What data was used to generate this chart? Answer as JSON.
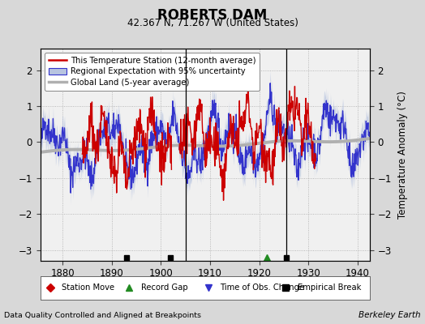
{
  "title": "ROBERTS DAM",
  "subtitle": "42.367 N, 71.267 W (United States)",
  "xlabel_left": "Data Quality Controlled and Aligned at Breakpoints",
  "xlabel_right": "Berkeley Earth",
  "ylabel": "Temperature Anomaly (°C)",
  "xlim": [
    1875.5,
    1942.5
  ],
  "ylim": [
    -3.3,
    2.6
  ],
  "yticks": [
    -3,
    -2,
    -1,
    0,
    1,
    2
  ],
  "xticks": [
    1880,
    1890,
    1900,
    1910,
    1920,
    1930,
    1940
  ],
  "bg_color": "#d8d8d8",
  "plot_bg_color": "#f0f0f0",
  "vertical_lines": [
    1905.0,
    1925.5
  ],
  "empirical_breaks": [
    1893.0,
    1902.0,
    1925.5
  ],
  "record_gap_x": 1921.5,
  "seed": 42
}
